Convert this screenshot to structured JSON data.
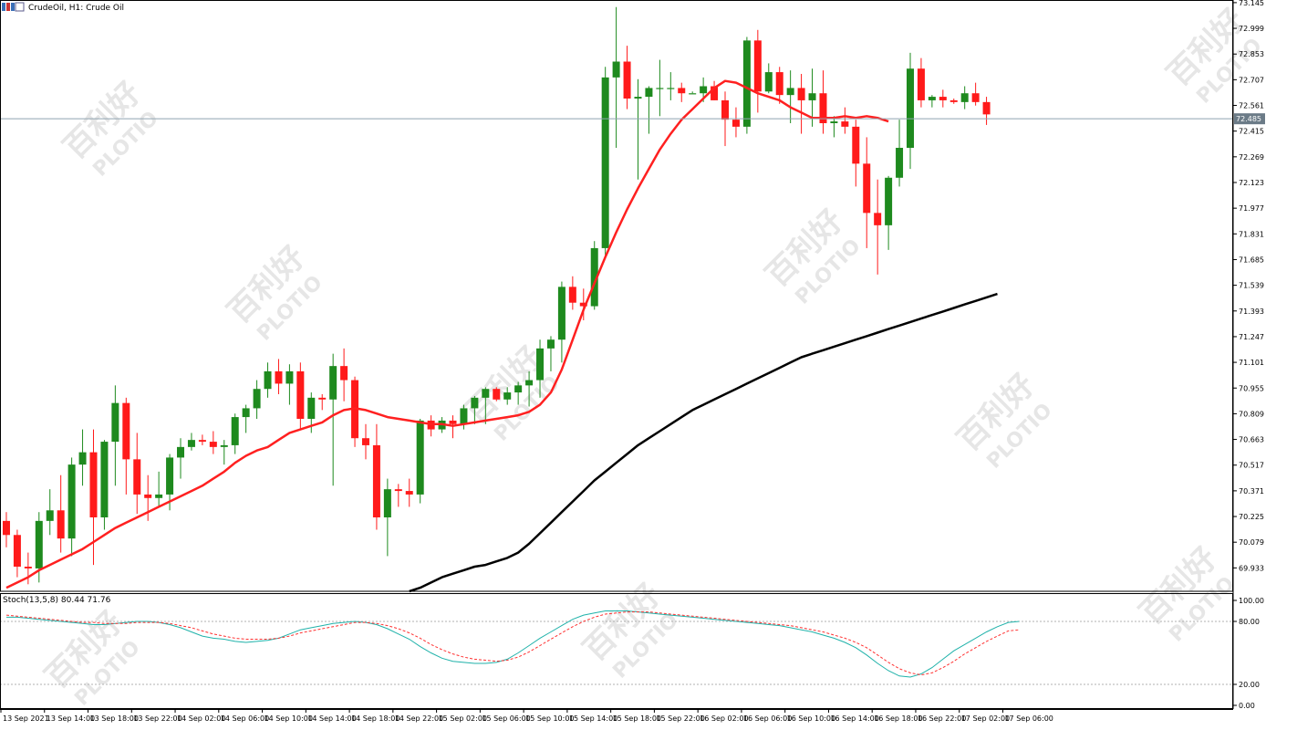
{
  "window": {
    "title": "CrudeOil, H1:  Crude Oil",
    "icon": "chart-window-icon"
  },
  "colors": {
    "bull": "#1e8a1e",
    "bear": "#ff1a1a",
    "ma_fast": "#ff2020",
    "ma_slow": "#000000",
    "stoch_main": "#20b2aa",
    "stoch_signal": "#ff3030",
    "price_line": "#8fa3b0"
  },
  "watermark": {
    "cn": "百利好",
    "en": "PLOTIO"
  },
  "chart_data": [
    {
      "type": "candlestick",
      "symbol": "CrudeOil",
      "timeframe": "H1",
      "description": "Crude Oil",
      "ylim": [
        69.8,
        73.16
      ],
      "y_ticks": [
        "73.145",
        "72.999",
        "72.853",
        "72.707",
        "72.561",
        "72.415",
        "72.269",
        "72.123",
        "71.977",
        "71.831",
        "71.685",
        "71.539",
        "71.393",
        "71.247",
        "71.101",
        "70.955",
        "70.809",
        "70.663",
        "70.517",
        "70.371",
        "70.225",
        "70.079",
        "69.933"
      ],
      "current_price": "72.485",
      "x_ticks": [
        "13 Sep 2021",
        "13 Sep 14:00",
        "13 Sep 18:00",
        "13 Sep 22:00",
        "14 Sep 02:00",
        "14 Sep 06:00",
        "14 Sep 10:00",
        "14 Sep 14:00",
        "14 Sep 18:00",
        "14 Sep 22:00",
        "15 Sep 02:00",
        "15 Sep 06:00",
        "15 Sep 10:00",
        "15 Sep 14:00",
        "15 Sep 18:00",
        "15 Sep 22:00",
        "16 Sep 02:00",
        "16 Sep 06:00",
        "16 Sep 10:00",
        "16 Sep 14:00",
        "16 Sep 18:00",
        "16 Sep 22:00",
        "17 Sep 02:00",
        "17 Sep 06:00"
      ],
      "ohlc": [
        [
          70.2,
          70.25,
          70.05,
          70.12
        ],
        [
          70.12,
          70.15,
          69.88,
          69.94
        ],
        [
          69.94,
          70.02,
          69.84,
          69.93
        ],
        [
          69.93,
          70.25,
          69.85,
          70.2
        ],
        [
          70.2,
          70.38,
          70.12,
          70.26
        ],
        [
          70.26,
          70.46,
          70.02,
          70.1
        ],
        [
          70.1,
          70.56,
          70.0,
          70.52
        ],
        [
          70.52,
          70.72,
          70.4,
          70.59
        ],
        [
          70.59,
          70.72,
          69.95,
          70.22
        ],
        [
          70.22,
          70.66,
          70.15,
          70.65
        ],
        [
          70.65,
          70.97,
          70.4,
          70.87
        ],
        [
          70.87,
          70.9,
          70.35,
          70.55
        ],
        [
          70.55,
          70.7,
          70.24,
          70.35
        ],
        [
          70.35,
          70.46,
          70.2,
          70.33
        ],
        [
          70.33,
          70.48,
          70.28,
          70.35
        ],
        [
          70.35,
          70.58,
          70.26,
          70.56
        ],
        [
          70.56,
          70.67,
          70.44,
          70.62
        ],
        [
          70.62,
          70.7,
          70.6,
          70.66
        ],
        [
          70.66,
          70.69,
          70.63,
          70.65
        ],
        [
          70.65,
          70.71,
          70.58,
          70.62
        ],
        [
          70.62,
          70.66,
          70.52,
          70.63
        ],
        [
          70.63,
          70.81,
          70.58,
          70.79
        ],
        [
          70.79,
          70.86,
          70.7,
          70.84
        ],
        [
          70.84,
          71.0,
          70.78,
          70.95
        ],
        [
          70.95,
          71.1,
          70.9,
          71.05
        ],
        [
          71.05,
          71.12,
          70.92,
          70.98
        ],
        [
          70.98,
          71.09,
          70.86,
          71.05
        ],
        [
          71.05,
          71.1,
          70.72,
          70.78
        ],
        [
          70.78,
          70.93,
          70.7,
          70.9
        ],
        [
          70.9,
          70.92,
          70.83,
          70.89
        ],
        [
          70.89,
          71.15,
          70.4,
          71.08
        ],
        [
          71.08,
          71.18,
          70.88,
          71.0
        ],
        [
          71.0,
          71.02,
          70.62,
          70.67
        ],
        [
          70.67,
          70.75,
          70.55,
          70.63
        ],
        [
          70.63,
          70.75,
          70.15,
          70.22
        ],
        [
          70.22,
          70.44,
          70.0,
          70.38
        ],
        [
          70.38,
          70.41,
          70.28,
          70.37
        ],
        [
          70.37,
          70.44,
          70.28,
          70.35
        ],
        [
          70.35,
          70.78,
          70.3,
          70.77
        ],
        [
          70.77,
          70.8,
          70.68,
          70.72
        ],
        [
          70.72,
          70.79,
          70.7,
          70.77
        ],
        [
          70.77,
          70.8,
          70.67,
          70.75
        ],
        [
          70.75,
          70.86,
          70.72,
          70.84
        ],
        [
          70.84,
          70.91,
          70.75,
          70.9
        ],
        [
          70.9,
          70.96,
          70.75,
          70.95
        ],
        [
          70.95,
          70.96,
          70.88,
          70.89
        ],
        [
          70.89,
          70.96,
          70.86,
          70.93
        ],
        [
          70.93,
          70.99,
          70.86,
          70.97
        ],
        [
          70.97,
          71.05,
          70.85,
          71.0
        ],
        [
          71.0,
          71.23,
          70.9,
          71.18
        ],
        [
          71.18,
          71.25,
          71.05,
          71.23
        ],
        [
          71.23,
          71.56,
          71.1,
          71.53
        ],
        [
          71.53,
          71.59,
          71.4,
          71.44
        ],
        [
          71.44,
          71.52,
          71.34,
          71.42
        ],
        [
          71.42,
          71.79,
          71.4,
          71.75
        ],
        [
          71.75,
          72.78,
          71.7,
          72.72
        ],
        [
          72.72,
          73.12,
          72.32,
          72.81
        ],
        [
          72.81,
          72.9,
          72.54,
          72.6
        ],
        [
          72.6,
          72.71,
          72.14,
          72.61
        ],
        [
          72.61,
          72.67,
          72.4,
          72.66
        ],
        [
          72.66,
          72.82,
          72.5,
          72.66
        ],
        [
          72.66,
          72.75,
          72.59,
          72.66
        ],
        [
          72.66,
          72.69,
          72.58,
          72.63
        ],
        [
          72.63,
          72.64,
          72.63,
          72.63
        ],
        [
          72.63,
          72.72,
          72.58,
          72.67
        ],
        [
          72.67,
          72.7,
          72.59,
          72.59
        ],
        [
          72.59,
          72.64,
          72.33,
          72.48
        ],
        [
          72.48,
          72.55,
          72.38,
          72.44
        ],
        [
          72.44,
          72.95,
          72.4,
          72.93
        ],
        [
          72.93,
          72.99,
          72.52,
          72.64
        ],
        [
          72.64,
          72.8,
          72.63,
          72.75
        ],
        [
          72.75,
          72.78,
          72.57,
          72.62
        ],
        [
          72.62,
          72.76,
          72.46,
          72.66
        ],
        [
          72.66,
          72.74,
          72.4,
          72.59
        ],
        [
          72.59,
          72.77,
          72.44,
          72.63
        ],
        [
          72.63,
          72.76,
          72.4,
          72.46
        ],
        [
          72.46,
          72.5,
          72.38,
          72.47
        ],
        [
          72.47,
          72.55,
          72.4,
          72.44
        ],
        [
          72.44,
          72.48,
          72.1,
          72.23
        ],
        [
          72.23,
          72.38,
          71.75,
          71.95
        ],
        [
          71.95,
          72.14,
          71.6,
          71.88
        ],
        [
          71.88,
          72.16,
          71.74,
          72.15
        ],
        [
          72.15,
          72.48,
          72.1,
          72.32
        ],
        [
          72.32,
          72.86,
          72.2,
          72.77
        ],
        [
          72.77,
          72.83,
          72.55,
          72.59
        ],
        [
          72.59,
          72.62,
          72.55,
          72.61
        ],
        [
          72.61,
          72.65,
          72.55,
          72.59
        ],
        [
          72.59,
          72.6,
          72.57,
          72.58
        ],
        [
          72.58,
          72.67,
          72.54,
          72.63
        ],
        [
          72.63,
          72.69,
          72.56,
          72.58
        ],
        [
          72.58,
          72.61,
          72.45,
          72.51
        ]
      ],
      "ma_fast": [
        69.82,
        69.85,
        69.88,
        69.92,
        69.95,
        69.98,
        70.01,
        70.04,
        70.08,
        70.12,
        70.16,
        70.19,
        70.22,
        70.25,
        70.28,
        70.31,
        70.34,
        70.37,
        70.4,
        70.44,
        70.48,
        70.53,
        70.57,
        70.6,
        70.62,
        70.66,
        70.7,
        70.72,
        70.74,
        70.76,
        70.8,
        70.83,
        70.84,
        70.83,
        70.81,
        70.79,
        70.78,
        70.77,
        70.76,
        70.75,
        70.75,
        70.74,
        70.75,
        70.76,
        70.77,
        70.78,
        70.79,
        70.8,
        70.82,
        70.86,
        70.93,
        71.06,
        71.23,
        71.4,
        71.55,
        71.7,
        71.84,
        71.97,
        72.09,
        72.2,
        72.31,
        72.4,
        72.48,
        72.54,
        72.6,
        72.66,
        72.7,
        72.69,
        72.66,
        72.63,
        72.61,
        72.59,
        72.55,
        72.52,
        72.49,
        72.49,
        72.49,
        72.5,
        72.49,
        72.5,
        72.49,
        72.47
      ],
      "ma_slow": [
        69.8,
        69.82,
        69.85,
        69.88,
        69.9,
        69.92,
        69.94,
        69.95,
        69.97,
        69.99,
        70.02,
        70.07,
        70.13,
        70.19,
        70.25,
        70.31,
        70.37,
        70.43,
        70.48,
        70.53,
        70.58,
        70.63,
        70.67,
        70.71,
        70.75,
        70.79,
        70.83,
        70.86,
        70.89,
        70.92,
        70.95,
        70.98,
        71.01,
        71.04,
        71.07,
        71.1,
        71.13,
        71.15,
        71.17,
        71.19,
        71.21,
        71.23,
        71.25,
        71.27,
        71.29,
        71.31,
        71.33,
        71.35,
        71.37,
        71.39,
        71.41,
        71.43,
        71.45,
        71.47,
        71.49
      ],
      "ma_slow_start_bar": 37
    },
    {
      "type": "line",
      "indicator": "Stoch(13,5,8)",
      "label": "Stoch(13,5,8) 80.44 71.76",
      "ylim": [
        0,
        100
      ],
      "y_ticks": [
        "100.00",
        "80.00",
        "20.00",
        "0.00"
      ],
      "levels": [
        80,
        20
      ],
      "series": [
        {
          "name": "main",
          "values": [
            84,
            84,
            83,
            82,
            81,
            80,
            79,
            78,
            77,
            77,
            78,
            79,
            80,
            80,
            79,
            77,
            74,
            70,
            66,
            64,
            63,
            61,
            60,
            61,
            62,
            64,
            68,
            72,
            74,
            76,
            78,
            79,
            80,
            79,
            77,
            73,
            68,
            63,
            56,
            50,
            45,
            42,
            41,
            40,
            40,
            41,
            44,
            50,
            57,
            64,
            70,
            76,
            82,
            86,
            88,
            90,
            90,
            90,
            89,
            88,
            87,
            86,
            85,
            84,
            83,
            82,
            81,
            80,
            79,
            78,
            77,
            76,
            74,
            72,
            70,
            67,
            64,
            60,
            55,
            48,
            40,
            33,
            28,
            27,
            30,
            36,
            44,
            52,
            58,
            64,
            70,
            75,
            79,
            80
          ]
        },
        {
          "name": "signal",
          "values": [
            86,
            85,
            84,
            83,
            82,
            81,
            80,
            79,
            79,
            78,
            78,
            78,
            79,
            79,
            79,
            78,
            76,
            74,
            71,
            68,
            66,
            64,
            63,
            63,
            63,
            64,
            66,
            69,
            71,
            73,
            75,
            77,
            79,
            79,
            78,
            76,
            73,
            69,
            64,
            58,
            53,
            49,
            46,
            44,
            43,
            42,
            43,
            46,
            51,
            57,
            63,
            69,
            75,
            80,
            84,
            87,
            88,
            89,
            89,
            89,
            88,
            87,
            86,
            85,
            84,
            83,
            82,
            81,
            80,
            79,
            78,
            77,
            76,
            74,
            72,
            70,
            67,
            64,
            60,
            55,
            48,
            41,
            35,
            31,
            29,
            31,
            36,
            42,
            49,
            55,
            61,
            66,
            71,
            72
          ]
        }
      ]
    }
  ]
}
